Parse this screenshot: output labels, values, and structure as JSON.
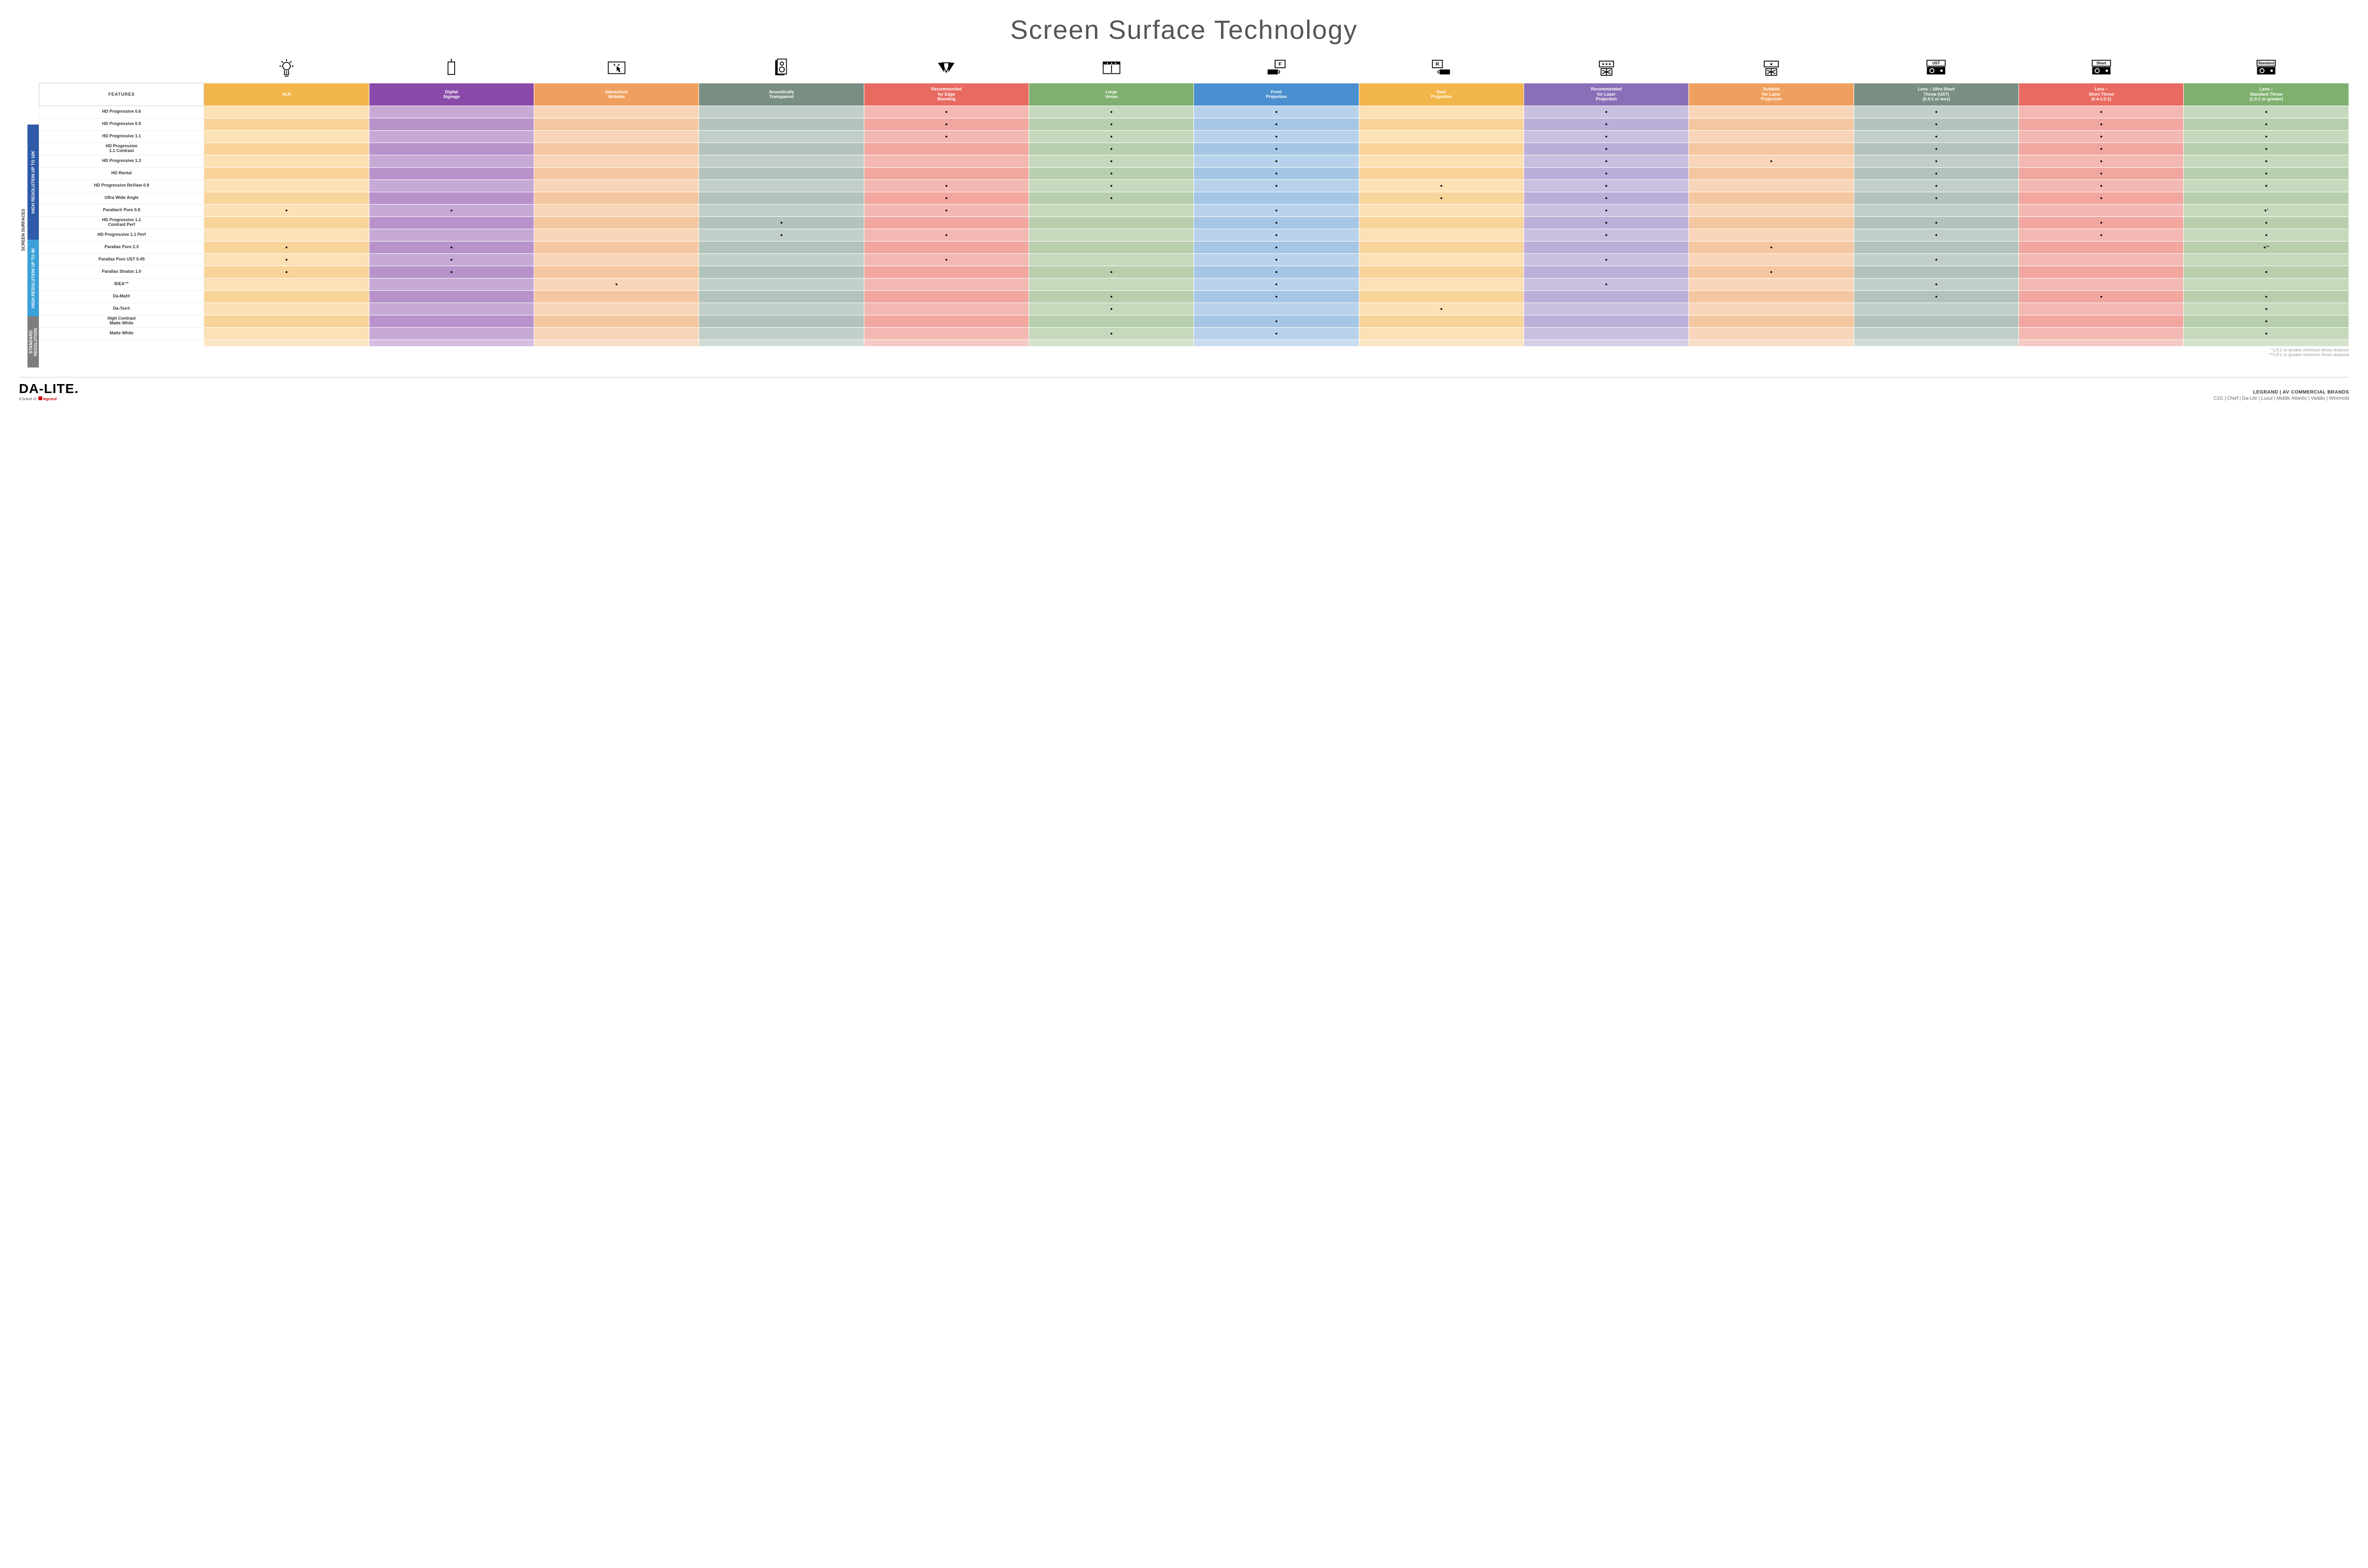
{
  "title": "Screen Surface Technology",
  "features_header": "FEATURES",
  "columns": [
    {
      "key": "alr",
      "label": "ALR",
      "color": "#f2b54a"
    },
    {
      "key": "signage",
      "label": "Digital\nSignage",
      "color": "#8a4aa9"
    },
    {
      "key": "interactive",
      "label": "Interactive/\nWritable",
      "color": "#f0a05e"
    },
    {
      "key": "acoustic",
      "label": "Acoustically\nTransparent",
      "color": "#7a8f84"
    },
    {
      "key": "edge",
      "label": "Recommended\nfor Edge\nBlending",
      "color": "#e96a60"
    },
    {
      "key": "large",
      "label": "Large\nVenue",
      "color": "#7fb06f"
    },
    {
      "key": "front",
      "label": "Front\nProjection",
      "color": "#4a8fcf"
    },
    {
      "key": "rear",
      "label": "Rear\nProjection",
      "color": "#f2b54a"
    },
    {
      "key": "recLaser",
      "label": "Recommended\nfor Laser\nProjection",
      "color": "#8a6fb8"
    },
    {
      "key": "suitLaser",
      "label": "Suitable\nfor Laser\nProjection",
      "color": "#f0a05e"
    },
    {
      "key": "ust",
      "label": "Lens – Ultra Short\nThrow (UST)\n(0.4:1 or less)",
      "color": "#7a8f84"
    },
    {
      "key": "short",
      "label": "Lens –\nShort Throw\n(0.4-1.0:1)",
      "color": "#e96a60"
    },
    {
      "key": "std",
      "label": "Lens –\nStandard Throw\n(1.0:1 or greater)",
      "color": "#7fb06f"
    }
  ],
  "column_shades": {
    "alr": [
      "#fce1b5",
      "#f9d49a"
    ],
    "signage": [
      "#c7a9d6",
      "#b892cb"
    ],
    "interactive": [
      "#f8d5b8",
      "#f5c7a0"
    ],
    "acoustic": [
      "#c2cfc8",
      "#b3c2ba"
    ],
    "edge": [
      "#f4b8b2",
      "#f1a69f"
    ],
    "large": [
      "#c6d9bd",
      "#b8cfad"
    ],
    "front": [
      "#b8d2eb",
      "#a5c6e5"
    ],
    "rear": [
      "#fce1b5",
      "#f9d49a"
    ],
    "recLaser": [
      "#c9bfe0",
      "#bbaed8"
    ],
    "suitLaser": [
      "#f8d5b8",
      "#f5c7a0"
    ],
    "ust": [
      "#c2cfc8",
      "#b3c2ba"
    ],
    "short": [
      "#f4b8b2",
      "#f1a69f"
    ],
    "std": [
      "#c6d9bd",
      "#b8cfad"
    ]
  },
  "side_categories_label": "SCREEN SURFACES",
  "categories": [
    {
      "label": "HIGH RESOLUTION UP TO 16K",
      "color": "#2e5aa8",
      "rows": 9
    },
    {
      "label": "HIGH RESOLUTION UP TO 4K",
      "color": "#3aa0d8",
      "rows": 6
    },
    {
      "label": "STANDARD\nRESOLUTION",
      "color": "#7d7d7d",
      "rows": 4
    }
  ],
  "rows": [
    {
      "label": "HD Progressive 0.6",
      "dots": {
        "edge": "●",
        "large": "●",
        "front": "●",
        "recLaser": "●",
        "ust": "●",
        "short": "●",
        "std": "●"
      }
    },
    {
      "label": "HD Progressive 0.9",
      "dots": {
        "edge": "●",
        "large": "●",
        "front": "●",
        "recLaser": "●",
        "ust": "●",
        "short": "●",
        "std": "●"
      }
    },
    {
      "label": "HD Progressive 1.1",
      "dots": {
        "edge": "●",
        "large": "●",
        "front": "●",
        "recLaser": "●",
        "ust": "●",
        "short": "●",
        "std": "●"
      }
    },
    {
      "label": "HD Progressive\n1.1 Contrast",
      "dots": {
        "large": "●",
        "front": "●",
        "recLaser": "●",
        "ust": "●",
        "short": "●",
        "std": "●"
      }
    },
    {
      "label": "HD Progressive 1.3",
      "dots": {
        "large": "●",
        "front": "●",
        "recLaser": "●",
        "suitLaser": "●",
        "ust": "●",
        "short": "●",
        "std": "●"
      }
    },
    {
      "label": "HD Rental",
      "dots": {
        "large": "●",
        "front": "●",
        "recLaser": "●",
        "ust": "●",
        "short": "●",
        "std": "●"
      }
    },
    {
      "label": "HD Progressive ReView 0.9",
      "dots": {
        "edge": "●",
        "large": "●",
        "front": "●",
        "rear": "●",
        "recLaser": "●",
        "ust": "●",
        "short": "●",
        "std": "●"
      }
    },
    {
      "label": "Ultra Wide Angle",
      "dots": {
        "edge": "●",
        "large": "●",
        "rear": "●",
        "recLaser": "●",
        "ust": "●",
        "short": "●"
      }
    },
    {
      "label": "Parallax® Pure 0.8",
      "dots": {
        "alr": "●",
        "signage": "●",
        "edge": "●",
        "front": "●",
        "recLaser": "●",
        "std": "●*"
      }
    },
    {
      "label": "HD Progressive 1.1\nContrast Perf",
      "dots": {
        "acoustic": "●",
        "front": "●",
        "recLaser": "●",
        "ust": "●",
        "short": "●",
        "std": "●"
      }
    },
    {
      "label": "HD Progressive 1.1 Perf",
      "dots": {
        "acoustic": "●",
        "edge": "●",
        "front": "●",
        "recLaser": "●",
        "ust": "●",
        "short": "●",
        "std": "●"
      }
    },
    {
      "label": "Parallax Pure 2.3",
      "dots": {
        "alr": "●",
        "signage": "●",
        "front": "●",
        "suitLaser": "●",
        "std": "●**"
      }
    },
    {
      "label": "Parallax Pure UST 0.45",
      "dots": {
        "alr": "●",
        "signage": "●",
        "edge": "●",
        "front": "●",
        "recLaser": "●",
        "ust": "●"
      }
    },
    {
      "label": "Parallax Stratos 1.0",
      "dots": {
        "alr": "●",
        "signage": "●",
        "large": "●",
        "front": "●",
        "suitLaser": "●",
        "std": "●"
      }
    },
    {
      "label": "IDEA™",
      "dots": {
        "interactive": "●",
        "front": "●",
        "recLaser": "●",
        "ust": "●"
      }
    },
    {
      "label": "Da-Mat®",
      "dots": {
        "large": "●",
        "front": "●",
        "ust": "●",
        "short": "●",
        "std": "●"
      }
    },
    {
      "label": "Da-Tex®",
      "dots": {
        "large": "●",
        "rear": "●",
        "std": "●"
      }
    },
    {
      "label": "High Contrast\nMatte White",
      "dots": {
        "front": "●",
        "std": "●"
      }
    },
    {
      "label": "Matte White",
      "dots": {
        "large": "●",
        "front": "●",
        "std": "●"
      }
    }
  ],
  "footnotes": [
    "*1.5:1 or greater minimum throw distance",
    "**1.8:1 or greater minimum throw distance"
  ],
  "footer": {
    "brand": "DA-LITE.",
    "brand_sub_prefix": "A brand of ",
    "brand_sub_logo": "legrand",
    "right_top": "LEGRAND | AV COMMERCIAL BRANDS",
    "right_list": "C2G  |  Chief  |  Da-Lite  |  Luxul  |  Middle Atlantic  |  Vaddio  |  Wiremold"
  },
  "icon_labels": {
    "ust": "UST",
    "short": "Short",
    "std": "Standard",
    "front": "F",
    "rear": "R"
  }
}
